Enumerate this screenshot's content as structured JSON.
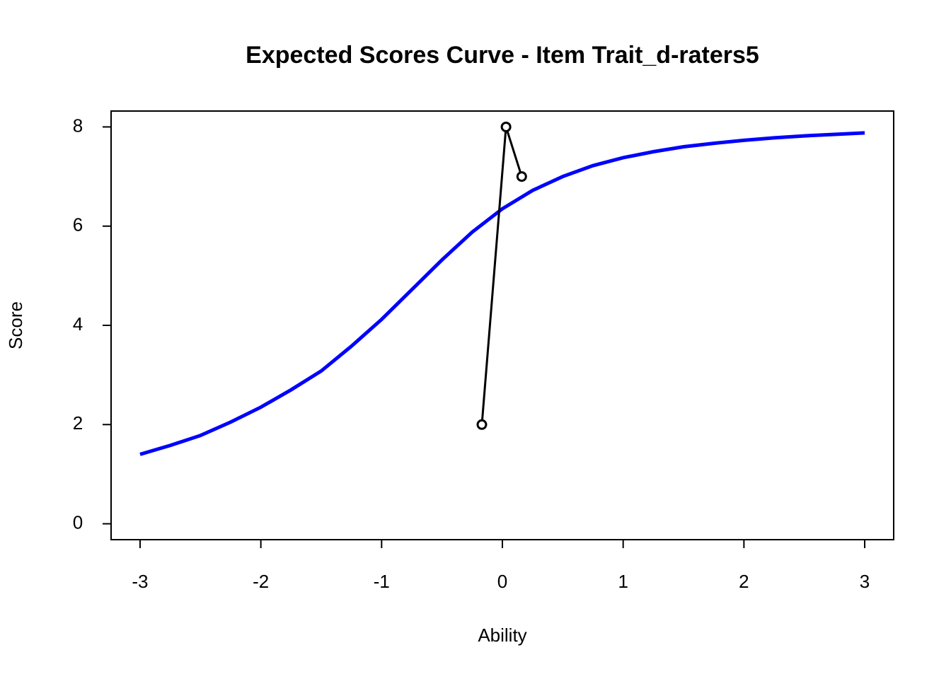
{
  "chart_data": {
    "type": "line",
    "title": "Expected Scores Curve - Item  Trait_d-raters5",
    "x_label": "Ability",
    "y_label": "Score",
    "xlim": [
      -3.24,
      3.24
    ],
    "ylim": [
      -0.32,
      8.32
    ],
    "xticks": [
      -3,
      -2,
      -1,
      0,
      1,
      2,
      3
    ],
    "yticks": [
      0,
      2,
      4,
      6,
      8
    ],
    "series": [
      {
        "color": "#0000ff",
        "markers": false,
        "x": [
          -3,
          -2.75,
          -2.5,
          -2.25,
          -2,
          -1.75,
          -1.5,
          -1.25,
          -1,
          -0.75,
          -0.5,
          -0.25,
          0,
          0.25,
          0.5,
          0.75,
          1,
          1.25,
          1.5,
          1.75,
          2,
          2.25,
          2.5,
          2.75,
          3
        ],
        "values": [
          1.4,
          1.58,
          1.78,
          2.05,
          2.35,
          2.7,
          3.08,
          3.58,
          4.12,
          4.72,
          5.32,
          5.88,
          6.35,
          6.72,
          7.0,
          7.22,
          7.38,
          7.5,
          7.6,
          7.67,
          7.73,
          7.78,
          7.82,
          7.85,
          7.88
        ]
      },
      {
        "color": "#000000",
        "markers": true,
        "x": [
          -0.17,
          0.03,
          0.16
        ],
        "values": [
          2,
          8,
          7
        ]
      }
    ]
  }
}
